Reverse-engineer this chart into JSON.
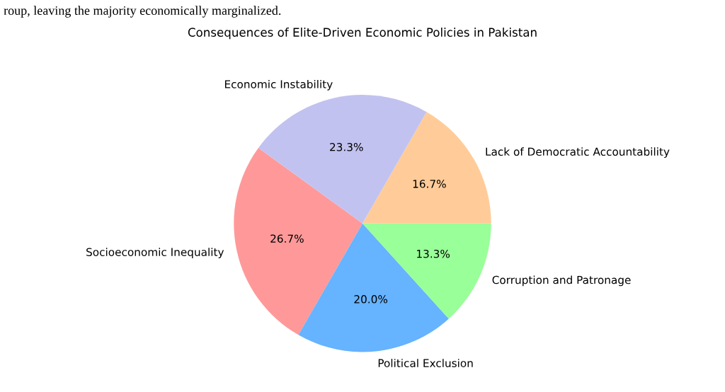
{
  "chart_data": {
    "type": "pie",
    "title": "Consequences of Elite-Driven Economic Policies in Pakistan",
    "categories": [
      "Socioeconomic Inequality",
      "Political Exclusion",
      "Corruption and Patronage",
      "Lack of Democratic Accountability",
      "Economic Instability"
    ],
    "values": [
      26.7,
      20.0,
      13.3,
      16.7,
      23.3
    ],
    "colors": [
      "#ff9999",
      "#66b3ff",
      "#99ff99",
      "#ffcc99",
      "#c2c2f0"
    ],
    "value_labels": [
      "26.7%",
      "20.0%",
      "13.3%",
      "16.7%",
      "23.3%"
    ],
    "annotations": [
      "roup, leaving the majority economically marginalized."
    ]
  }
}
